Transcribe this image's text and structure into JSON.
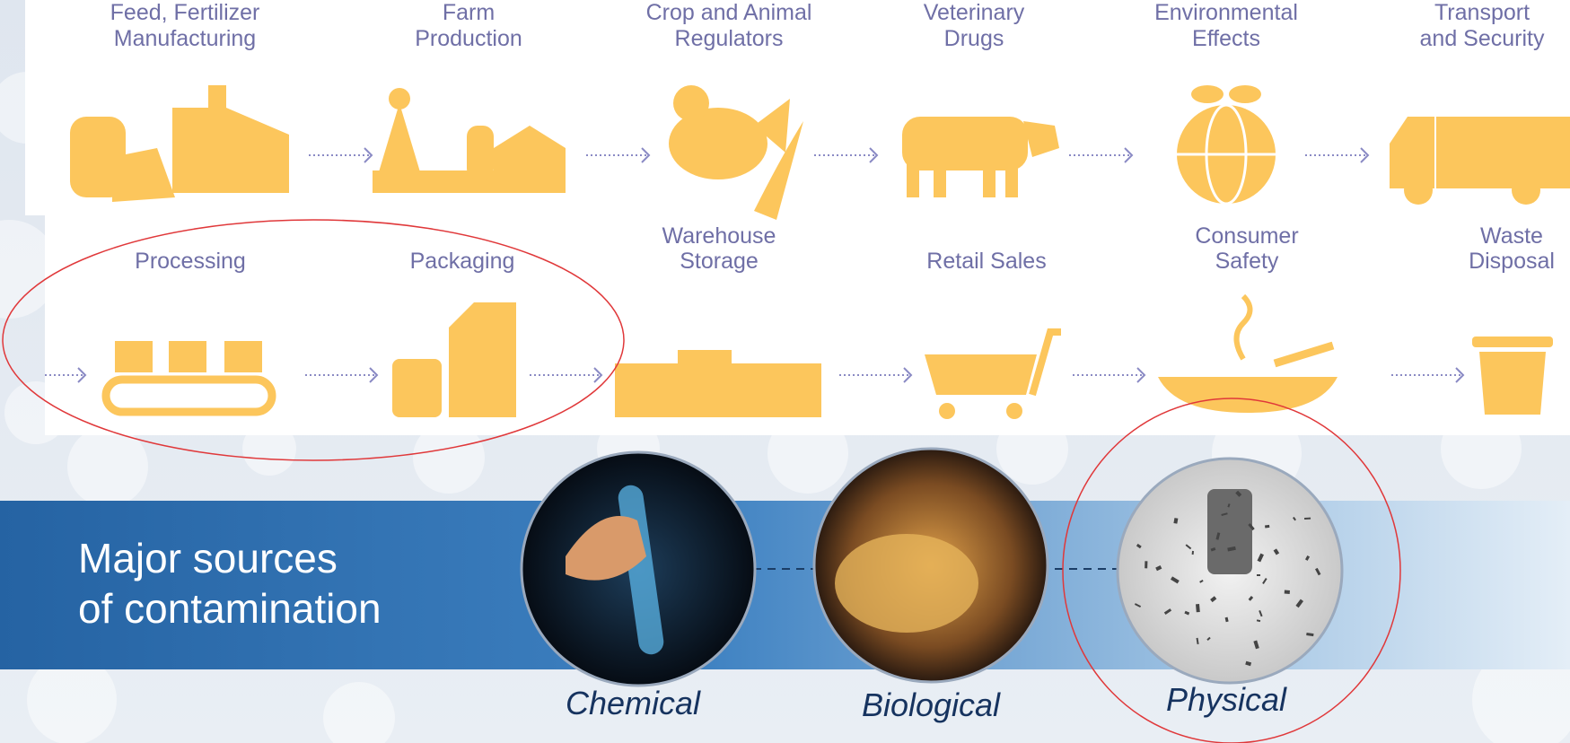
{
  "supply_chain": {
    "rows": [
      [
        {
          "label": [
            "Feed, Fertilizer",
            "Manufacturing"
          ]
        },
        {
          "label": [
            "Farm",
            "Production"
          ]
        },
        {
          "label": [
            "Crop and Animal",
            "Regulators"
          ]
        },
        {
          "label": [
            "Veterinary",
            "Drugs"
          ]
        },
        {
          "label": [
            "Environmental",
            "Effects"
          ]
        },
        {
          "label": [
            "Transport",
            "and Security"
          ]
        }
      ],
      [
        {
          "label": [
            "Processing"
          ]
        },
        {
          "label": [
            "Packaging"
          ]
        },
        {
          "label": [
            "Warehouse",
            "Storage"
          ]
        },
        {
          "label": [
            "Retail Sales"
          ]
        },
        {
          "label": [
            "Consumer",
            "Safety"
          ]
        },
        {
          "label": [
            "Waste",
            "Disposal"
          ]
        }
      ]
    ]
  },
  "contamination": {
    "title": [
      "Major sources",
      "of contamination"
    ],
    "sources": [
      "Chemical",
      "Biological",
      "Physical"
    ]
  }
}
